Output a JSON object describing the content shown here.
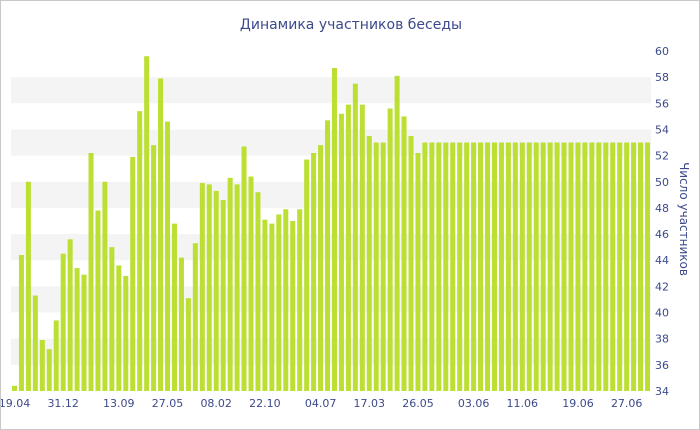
{
  "chart_data": {
    "type": "bar",
    "title": "Динамика участников беседы",
    "xlabel": "",
    "ylabel": "Число участников",
    "ylim": [
      34,
      60
    ],
    "y_ticks": [
      34,
      36,
      38,
      40,
      42,
      44,
      46,
      48,
      50,
      52,
      54,
      56,
      58,
      60
    ],
    "y_axis_position": "right",
    "grid": "alternating horizontal bands",
    "legend": "none",
    "bar_color": "#bbdf33",
    "x_tick_labels": [
      "19.04",
      "31.12",
      "13.09",
      "27.05",
      "08.02",
      "22.10",
      "04.07",
      "17.03",
      "26.05",
      "03.06",
      "11.06",
      "19.06",
      "27.06"
    ],
    "x_tick_bar_index": [
      0,
      7,
      15,
      22,
      29,
      36,
      44,
      51,
      58,
      66,
      73,
      81,
      88
    ],
    "values": [
      34.4,
      44.4,
      50.0,
      41.3,
      37.9,
      37.2,
      39.4,
      44.5,
      45.6,
      43.4,
      42.9,
      52.2,
      47.8,
      50.0,
      45.0,
      43.6,
      42.8,
      51.9,
      55.4,
      59.6,
      52.8,
      57.9,
      54.6,
      46.8,
      44.2,
      41.1,
      45.3,
      49.9,
      49.8,
      49.3,
      48.6,
      50.3,
      49.8,
      52.7,
      50.4,
      49.2,
      47.1,
      46.8,
      47.5,
      47.9,
      47.0,
      47.9,
      51.7,
      52.2,
      52.8,
      54.7,
      58.7,
      55.2,
      55.9,
      57.5,
      55.9,
      53.5,
      53.0,
      53.0,
      55.6,
      58.1,
      55.0,
      53.5,
      52.2,
      53.0,
      53.0,
      53.0,
      53.0,
      53.0,
      53.0,
      53.0,
      53.0,
      53.0,
      53.0,
      53.0,
      53.0,
      53.0,
      53.0,
      53.0,
      53.0,
      53.0,
      53.0,
      53.0,
      53.0,
      53.0,
      53.0,
      53.0,
      53.0,
      53.0,
      53.0,
      53.0,
      53.0,
      53.0,
      53.0,
      53.0,
      53.0,
      53.0
    ]
  }
}
